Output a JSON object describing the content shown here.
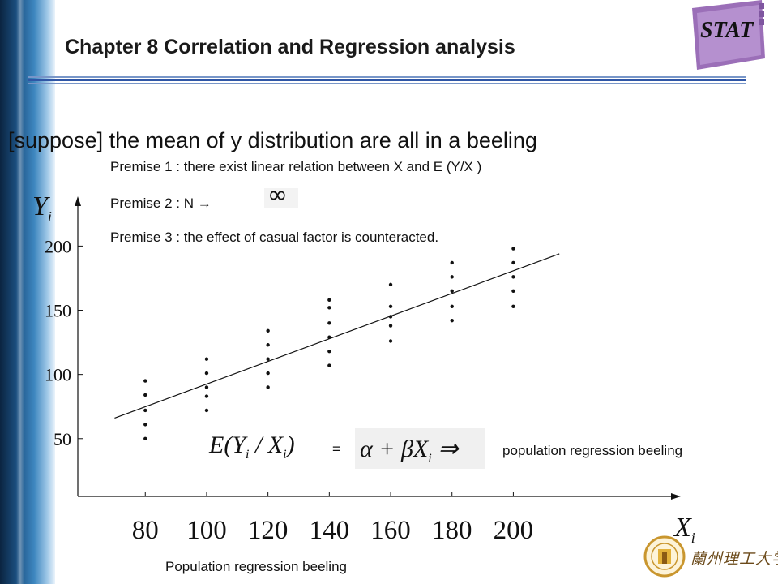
{
  "header": {
    "title": "Chapter 8 Correlation and Regression analysis",
    "logo_text": "STAT"
  },
  "headline": "[suppose] the mean of y distribution are all in a beeling",
  "premises": [
    "Premise 1 : there exist linear relation between X and E (Y/X )",
    "Premise 2 : N →",
    "Premise 3 : the effect of casual factor is counteracted."
  ],
  "premise2_symbol": "∞",
  "equation": {
    "left_main": "E(Y",
    "left_sub1": "i",
    "left_mid": " / X",
    "left_sub2": "i",
    "left_end": ")",
    "equals": "=",
    "right_main": "α + βX",
    "right_sub": "i",
    "right_arrow": " ⇒",
    "label": "population regression beeling"
  },
  "caption": "Population regression beeling",
  "university_name": "蘭州理工大学",
  "colors": {
    "accent": "#2f56a6",
    "logo_purple": "#9b6fb8",
    "axis": "#111111"
  },
  "chart_data": {
    "type": "scatter",
    "title": "",
    "xlabel_main": "X",
    "xlabel_sub": "i",
    "ylabel_main": "Y",
    "ylabel_sub": "i",
    "x_ticks": [
      80,
      100,
      120,
      140,
      160,
      180,
      200
    ],
    "y_ticks": [
      50,
      100,
      150,
      200
    ],
    "xlim": [
      58,
      253
    ],
    "ylim": [
      5,
      235
    ],
    "grid": false,
    "points": [
      {
        "x": 80,
        "y": 95
      },
      {
        "x": 80,
        "y": 84
      },
      {
        "x": 80,
        "y": 72
      },
      {
        "x": 80,
        "y": 61
      },
      {
        "x": 80,
        "y": 50
      },
      {
        "x": 100,
        "y": 112
      },
      {
        "x": 100,
        "y": 101
      },
      {
        "x": 100,
        "y": 90
      },
      {
        "x": 100,
        "y": 83
      },
      {
        "x": 100,
        "y": 72
      },
      {
        "x": 120,
        "y": 134
      },
      {
        "x": 120,
        "y": 123
      },
      {
        "x": 120,
        "y": 112
      },
      {
        "x": 120,
        "y": 101
      },
      {
        "x": 120,
        "y": 90
      },
      {
        "x": 140,
        "y": 158
      },
      {
        "x": 140,
        "y": 152
      },
      {
        "x": 140,
        "y": 140
      },
      {
        "x": 140,
        "y": 129
      },
      {
        "x": 140,
        "y": 118
      },
      {
        "x": 140,
        "y": 107
      },
      {
        "x": 160,
        "y": 170
      },
      {
        "x": 160,
        "y": 153
      },
      {
        "x": 160,
        "y": 145
      },
      {
        "x": 160,
        "y": 138
      },
      {
        "x": 160,
        "y": 126
      },
      {
        "x": 180,
        "y": 187
      },
      {
        "x": 180,
        "y": 176
      },
      {
        "x": 180,
        "y": 165
      },
      {
        "x": 180,
        "y": 153
      },
      {
        "x": 180,
        "y": 142
      },
      {
        "x": 200,
        "y": 198
      },
      {
        "x": 200,
        "y": 187
      },
      {
        "x": 200,
        "y": 176
      },
      {
        "x": 200,
        "y": 165
      },
      {
        "x": 200,
        "y": 153
      }
    ],
    "regression_line": {
      "x": [
        70,
        215
      ],
      "y": [
        66,
        194
      ]
    }
  }
}
